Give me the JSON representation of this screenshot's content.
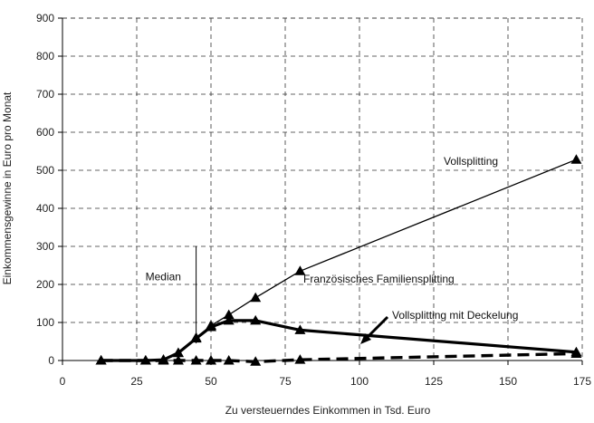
{
  "chart_data": {
    "type": "line",
    "title": "",
    "xlabel": "Zu versteuerndes Einkommen in Tsd. Euro",
    "ylabel": "Einkommensgewinne in Euro pro Monat",
    "xlim": [
      0,
      175
    ],
    "ylim": [
      0,
      900
    ],
    "xticks": [
      0,
      25,
      50,
      75,
      100,
      125,
      150,
      175
    ],
    "yticks": [
      0,
      100,
      200,
      300,
      400,
      500,
      600,
      700,
      800,
      900
    ],
    "grid": true,
    "series": [
      {
        "name": "Vollsplitting",
        "style": "solid-thin",
        "color": "#000000",
        "x": [
          13,
          28,
          34,
          39,
          45,
          50,
          56,
          65,
          80,
          173
        ],
        "y": [
          0,
          0,
          2,
          20,
          60,
          92,
          120,
          165,
          235,
          528
        ]
      },
      {
        "name": "Vollsplitting mit Deckelung",
        "style": "solid-thick",
        "color": "#000000",
        "x": [
          13,
          28,
          34,
          39,
          45,
          50,
          56,
          65,
          80,
          173
        ],
        "y": [
          0,
          0,
          2,
          20,
          58,
          88,
          105,
          105,
          80,
          22
        ]
      },
      {
        "name": "Französisches Familiensplitting",
        "style": "dashed-thick",
        "color": "#000000",
        "x": [
          13,
          28,
          34,
          39,
          45,
          50,
          56,
          65,
          80,
          173
        ],
        "y": [
          0,
          0,
          0,
          0,
          0,
          0,
          0,
          -3,
          2,
          18
        ]
      }
    ],
    "annotations": [
      {
        "text": "Vollsplitting"
      },
      {
        "text": "Französisches Familiensplitting"
      },
      {
        "text": "Vollsplitting mit Deckelung"
      },
      {
        "text": "Median",
        "x": 45,
        "y_top": 300
      }
    ]
  }
}
